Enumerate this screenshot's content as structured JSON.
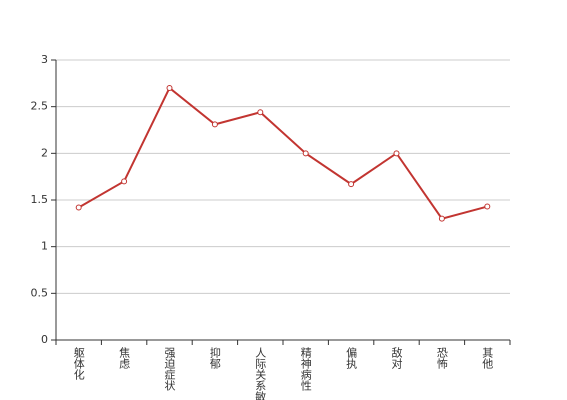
{
  "chart_data": {
    "type": "line",
    "categories": [
      "躯体化",
      "焦虑",
      "强迫症状",
      "抑郁",
      "人际关系敏感",
      "精神病性",
      "偏执",
      "敌对",
      "恐怖",
      "其他"
    ],
    "values": [
      1.42,
      1.7,
      2.7,
      2.31,
      2.44,
      2.0,
      1.67,
      2.0,
      1.3,
      1.43
    ],
    "color": "#c23531",
    "ylim": [
      0,
      3
    ],
    "yticks": [
      0,
      0.5,
      1,
      1.5,
      2,
      2.5,
      3
    ],
    "grid": true
  }
}
